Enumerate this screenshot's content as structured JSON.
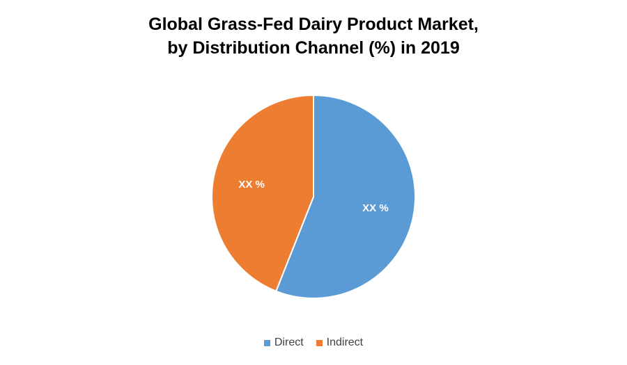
{
  "chart_data": {
    "type": "pie",
    "title": "Global Grass-Fed Dairy Product Market, by Distribution Channel (%) in 2019",
    "title_lines": [
      "Global Grass-Fed Dairy Product Market,",
      "by Distribution Channel (%) in 2019"
    ],
    "categories": [
      "Direct",
      "Indirect"
    ],
    "values": [
      56,
      44
    ],
    "data_labels": [
      "XX %",
      "XX %"
    ],
    "colors": [
      "#5B9BD5",
      "#ED7D31"
    ],
    "start_angle_deg": 0,
    "direction": "clockwise",
    "legend_position": "bottom"
  }
}
